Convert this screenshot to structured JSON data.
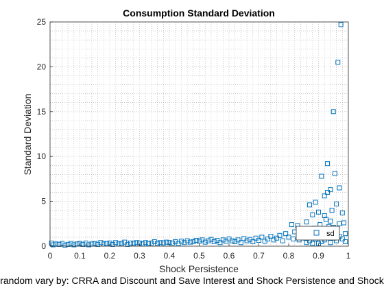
{
  "chart_data": {
    "type": "scatter",
    "title": "Consumption Standard Deviation",
    "xlabel": "Shock Persistence",
    "ylabel": "Standard Deviation",
    "caption": "random vary by: CRRA and Discount and Save Interest and Shock Persistence and Shock",
    "xlim": [
      0,
      1
    ],
    "ylim": [
      0,
      25
    ],
    "xticks": [
      0,
      0.1,
      0.2,
      0.3,
      0.4,
      0.5,
      0.6,
      0.7,
      0.8,
      0.9,
      1
    ],
    "xtick_labels": [
      "0",
      "0.1",
      "0.2",
      "0.3",
      "0.4",
      "0.5",
      "0.6",
      "0.7",
      "0.8",
      "0.9",
      "1"
    ],
    "yticks": [
      0,
      5,
      10,
      15,
      20,
      25
    ],
    "ytick_labels": [
      "0",
      "5",
      "10",
      "15",
      "20",
      "25"
    ],
    "grid": "minor-dotted",
    "legend_position": "bottom-right",
    "marker_color": "#0072BD",
    "series": [
      {
        "name": "sd",
        "marker": "square",
        "points": [
          [
            0.005,
            0.35
          ],
          [
            0.01,
            0.15
          ],
          [
            0.02,
            0.25
          ],
          [
            0.03,
            0.2
          ],
          [
            0.04,
            0.3
          ],
          [
            0.05,
            0.1
          ],
          [
            0.06,
            0.2
          ],
          [
            0.07,
            0.3
          ],
          [
            0.08,
            0.15
          ],
          [
            0.09,
            0.25
          ],
          [
            0.1,
            0.3
          ],
          [
            0.11,
            0.2
          ],
          [
            0.12,
            0.35
          ],
          [
            0.13,
            0.15
          ],
          [
            0.14,
            0.25
          ],
          [
            0.15,
            0.3
          ],
          [
            0.16,
            0.2
          ],
          [
            0.17,
            0.4
          ],
          [
            0.18,
            0.25
          ],
          [
            0.19,
            0.3
          ],
          [
            0.2,
            0.35
          ],
          [
            0.21,
            0.2
          ],
          [
            0.22,
            0.4
          ],
          [
            0.23,
            0.25
          ],
          [
            0.24,
            0.3
          ],
          [
            0.25,
            0.45
          ],
          [
            0.26,
            0.2
          ],
          [
            0.27,
            0.35
          ],
          [
            0.28,
            0.3
          ],
          [
            0.29,
            0.4
          ],
          [
            0.3,
            0.35
          ],
          [
            0.31,
            0.25
          ],
          [
            0.32,
            0.4
          ],
          [
            0.33,
            0.3
          ],
          [
            0.34,
            0.35
          ],
          [
            0.35,
            0.5
          ],
          [
            0.36,
            0.3
          ],
          [
            0.37,
            0.4
          ],
          [
            0.38,
            0.35
          ],
          [
            0.39,
            0.45
          ],
          [
            0.4,
            0.4
          ],
          [
            0.41,
            0.35
          ],
          [
            0.42,
            0.5
          ],
          [
            0.43,
            0.3
          ],
          [
            0.44,
            0.55
          ],
          [
            0.45,
            0.4
          ],
          [
            0.46,
            0.6
          ],
          [
            0.47,
            0.45
          ],
          [
            0.48,
            0.5
          ],
          [
            0.49,
            0.65
          ],
          [
            0.5,
            0.55
          ],
          [
            0.51,
            0.7
          ],
          [
            0.52,
            0.45
          ],
          [
            0.53,
            0.6
          ],
          [
            0.54,
            0.75
          ],
          [
            0.55,
            0.5
          ],
          [
            0.56,
            0.65
          ],
          [
            0.57,
            0.4
          ],
          [
            0.58,
            0.7
          ],
          [
            0.59,
            0.55
          ],
          [
            0.6,
            0.8
          ],
          [
            0.61,
            0.6
          ],
          [
            0.62,
            0.5
          ],
          [
            0.63,
            0.7
          ],
          [
            0.64,
            0.4
          ],
          [
            0.65,
            0.85
          ],
          [
            0.66,
            0.6
          ],
          [
            0.67,
            0.75
          ],
          [
            0.68,
            0.5
          ],
          [
            0.69,
            0.9
          ],
          [
            0.7,
            0.65
          ],
          [
            0.71,
            1.0
          ],
          [
            0.72,
            0.55
          ],
          [
            0.73,
            0.8
          ],
          [
            0.74,
            1.1
          ],
          [
            0.75,
            0.7
          ],
          [
            0.76,
            0.9
          ],
          [
            0.77,
            1.2
          ],
          [
            0.78,
            0.6
          ],
          [
            0.79,
            1.4
          ],
          [
            0.8,
            1.0
          ],
          [
            0.81,
            2.4
          ],
          [
            0.815,
            0.8
          ],
          [
            0.82,
            1.6
          ],
          [
            0.83,
            2.3
          ],
          [
            0.835,
            0.7
          ],
          [
            0.84,
            1.2
          ],
          [
            0.85,
            1.9
          ],
          [
            0.855,
            0.9
          ],
          [
            0.86,
            2.7
          ],
          [
            0.865,
            1.5
          ],
          [
            0.87,
            4.6
          ],
          [
            0.875,
            1.1
          ],
          [
            0.88,
            3.5
          ],
          [
            0.885,
            2.0
          ],
          [
            0.89,
            4.9
          ],
          [
            0.895,
            1.3
          ],
          [
            0.9,
            3.8
          ],
          [
            0.905,
            2.4
          ],
          [
            0.91,
            7.8
          ],
          [
            0.915,
            1.7
          ],
          [
            0.92,
            5.6
          ],
          [
            0.925,
            3.0
          ],
          [
            0.93,
            9.2
          ],
          [
            0.935,
            2.2
          ],
          [
            0.94,
            6.3
          ],
          [
            0.945,
            4.0
          ],
          [
            0.95,
            15.0
          ],
          [
            0.955,
            8.1
          ],
          [
            0.96,
            4.7
          ],
          [
            0.965,
            20.5
          ],
          [
            0.97,
            6.5
          ],
          [
            0.975,
            24.7
          ],
          [
            0.98,
            3.7
          ],
          [
            0.985,
            2.6
          ],
          [
            0.99,
            1.4
          ],
          [
            0.9,
            0.3
          ],
          [
            0.91,
            0.5
          ],
          [
            0.92,
            0.7
          ],
          [
            0.93,
            1.0
          ],
          [
            0.94,
            0.4
          ],
          [
            0.95,
            0.9
          ],
          [
            0.96,
            0.6
          ],
          [
            0.97,
            1.1
          ],
          [
            0.98,
            0.8
          ],
          [
            0.99,
            0.5
          ],
          [
            0.86,
            0.4
          ],
          [
            0.87,
            0.6
          ],
          [
            0.88,
            0.3
          ],
          [
            0.89,
            0.8
          ],
          [
            0.94,
            2.8
          ],
          [
            0.95,
            2.1
          ],
          [
            0.97,
            2.5
          ],
          [
            0.92,
            3.4
          ],
          [
            0.93,
            6.0
          ]
        ]
      }
    ]
  }
}
